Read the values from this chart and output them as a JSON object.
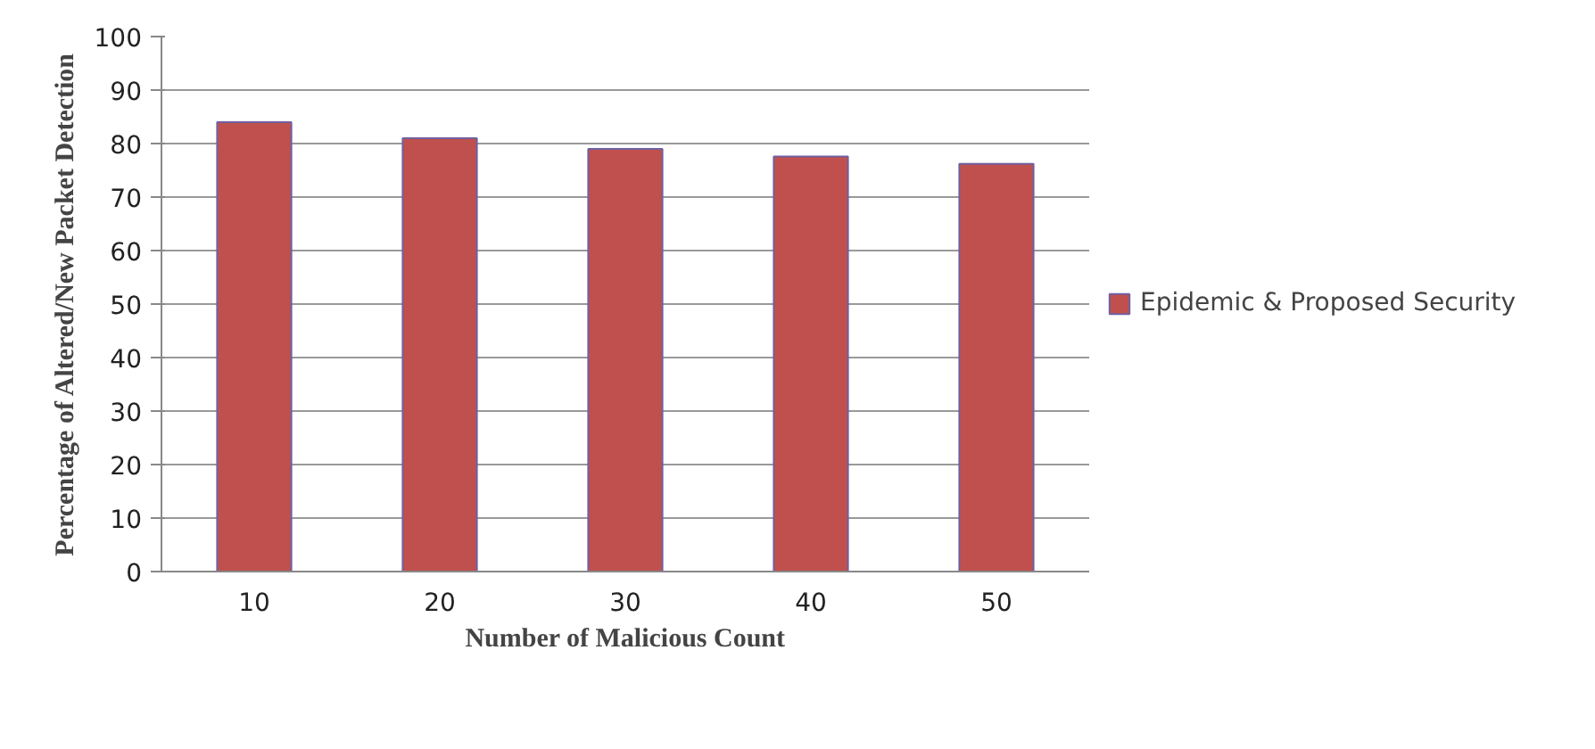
{
  "chart_data": {
    "type": "bar",
    "xlabel": "Number of Malicious Count",
    "ylabel": "Percentage of Altered/New Packet Detection",
    "categories": [
      "10",
      "20",
      "30",
      "40",
      "50"
    ],
    "series": [
      {
        "name": "Epidemic & Proposed Security",
        "color": "#c0504d",
        "values": [
          84,
          81,
          79,
          77.6,
          76.2
        ]
      }
    ],
    "ylim": [
      0,
      100
    ],
    "yticks": [
      0,
      10,
      20,
      30,
      40,
      50,
      60,
      70,
      80,
      90,
      100
    ],
    "grid": "y",
    "legend": "right"
  }
}
